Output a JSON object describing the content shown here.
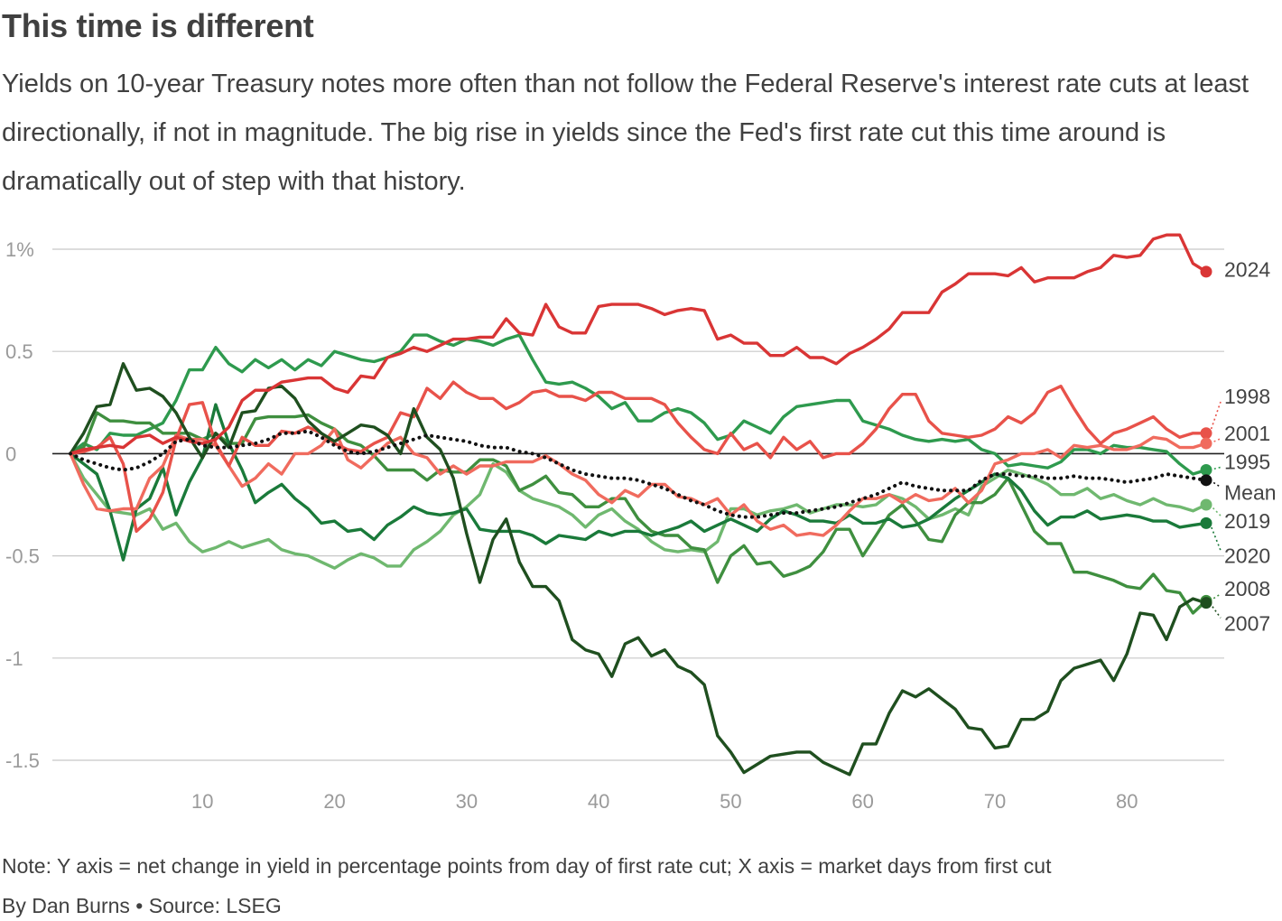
{
  "title": "This time is different",
  "subtitle": "Yields on 10-year Treasury notes more often than not follow the Federal Reserve's interest rate cuts at least directionally, if not in magnitude. The big rise in yields since the Fed's first rate cut this time around is dramatically out of step with that history.",
  "note": "Note: Y axis = net change in yield in percentage points from day of first rate cut; X axis = market days from first cut",
  "byline": "By Dan Burns • Source: LSEG",
  "chart_data": {
    "type": "line",
    "title": "This time is different",
    "xlabel": "Market days from first cut",
    "ylabel": "Net change in yield (percentage points)",
    "xlim": [
      0,
      88
    ],
    "ylim": [
      -1.65,
      1.05
    ],
    "x_ticks": [
      10,
      20,
      30,
      40,
      50,
      60,
      70,
      80
    ],
    "y_ticks": [
      {
        "value": 1,
        "label": "1%"
      },
      {
        "value": 0.5,
        "label": "0.5"
      },
      {
        "value": 0,
        "label": "0"
      },
      {
        "value": -0.5,
        "label": "-0.5"
      },
      {
        "value": -1,
        "label": "-1"
      },
      {
        "value": -1.5,
        "label": "-1.5"
      }
    ],
    "grid": true,
    "series": [
      {
        "name": "2024",
        "color": "#d93535",
        "style": "solid",
        "end_value": 0.89,
        "values": [
          0,
          0.02,
          0.03,
          0.04,
          0.03,
          0.08,
          0.09,
          0.05,
          0.08,
          0.06,
          0.05,
          0.07,
          0.13,
          0.26,
          0.31,
          0.31,
          0.35,
          0.36,
          0.37,
          0.37,
          0.32,
          0.3,
          0.38,
          0.37,
          0.47,
          0.49,
          0.52,
          0.5,
          0.53,
          0.56,
          0.56,
          0.57,
          0.57,
          0.66,
          0.59,
          0.58,
          0.73,
          0.62,
          0.59,
          0.59,
          0.72,
          0.73,
          0.73,
          0.73,
          0.71,
          0.68,
          0.7,
          0.71,
          0.7,
          0.56,
          0.58,
          0.54,
          0.54,
          0.48,
          0.48,
          0.52,
          0.47,
          0.47,
          0.44,
          0.49,
          0.52,
          0.56,
          0.61,
          0.69,
          0.69,
          0.69,
          0.79,
          0.83,
          0.88,
          0.88,
          0.88,
          0.87,
          0.91,
          0.84,
          0.86,
          0.86,
          0.86,
          0.89,
          0.91,
          0.97,
          0.96,
          0.97,
          1.05,
          1.07,
          1.07,
          0.93,
          0.89
        ]
      },
      {
        "name": "1998",
        "color": "#e8524a",
        "style": "solid",
        "end_value": 0.1,
        "values": [
          0,
          0.01,
          0.03,
          0.08,
          -0.05,
          -0.38,
          -0.32,
          -0.19,
          0.07,
          0.24,
          0.25,
          0.05,
          -0.06,
          0.08,
          0.04,
          0.04,
          0.11,
          0.1,
          0.13,
          0.1,
          0.05,
          0.02,
          0.01,
          0.05,
          0.08,
          0.2,
          0.18,
          0.32,
          0.27,
          0.35,
          0.3,
          0.27,
          0.27,
          0.22,
          0.25,
          0.3,
          0.31,
          0.28,
          0.28,
          0.26,
          0.3,
          0.3,
          0.27,
          0.27,
          0.27,
          0.24,
          0.15,
          0.08,
          0.02,
          0.0,
          0.1,
          0.02,
          0.05,
          -0.02,
          0.08,
          0.02,
          0.06,
          -0.02,
          0.0,
          0.0,
          0.05,
          0.12,
          0.22,
          0.29,
          0.29,
          0.16,
          0.1,
          0.09,
          0.08,
          0.09,
          0.12,
          0.18,
          0.15,
          0.2,
          0.3,
          0.33,
          0.22,
          0.12,
          0.05,
          0.1,
          0.12,
          0.15,
          0.18,
          0.12,
          0.08,
          0.1,
          0.1
        ]
      },
      {
        "name": "2001",
        "color": "#f06b5e",
        "style": "solid",
        "end_value": 0.05,
        "values": [
          0,
          -0.15,
          -0.27,
          -0.28,
          -0.27,
          -0.27,
          -0.12,
          -0.06,
          0.09,
          0.07,
          0.07,
          0.04,
          -0.06,
          -0.16,
          -0.12,
          -0.05,
          -0.1,
          0.0,
          0.0,
          0.04,
          0.12,
          -0.03,
          -0.07,
          -0.01,
          0.05,
          0.08,
          0.0,
          -0.02,
          -0.1,
          -0.06,
          -0.1,
          -0.06,
          -0.06,
          -0.04,
          -0.04,
          -0.04,
          -0.01,
          -0.05,
          -0.1,
          -0.13,
          -0.2,
          -0.24,
          -0.18,
          -0.21,
          -0.15,
          -0.15,
          -0.21,
          -0.22,
          -0.25,
          -0.22,
          -0.3,
          -0.25,
          -0.33,
          -0.37,
          -0.35,
          -0.4,
          -0.39,
          -0.4,
          -0.35,
          -0.28,
          -0.22,
          -0.22,
          -0.2,
          -0.24,
          -0.2,
          -0.23,
          -0.22,
          -0.17,
          -0.24,
          -0.18,
          -0.05,
          -0.03,
          0.0,
          0.0,
          0.02,
          -0.02,
          0.04,
          0.03,
          0.04,
          0.02,
          0.02,
          0.04,
          0.08,
          0.07,
          0.03,
          0.03,
          0.05
        ]
      },
      {
        "name": "1995",
        "color": "#2e9a4e",
        "style": "solid",
        "end_value": -0.08,
        "values": [
          0,
          0.05,
          0.02,
          0.1,
          0.09,
          0.09,
          0.12,
          0.15,
          0.26,
          0.41,
          0.41,
          0.52,
          0.44,
          0.4,
          0.46,
          0.42,
          0.46,
          0.41,
          0.46,
          0.43,
          0.5,
          0.48,
          0.46,
          0.45,
          0.47,
          0.5,
          0.58,
          0.58,
          0.55,
          0.53,
          0.56,
          0.55,
          0.53,
          0.56,
          0.58,
          0.46,
          0.35,
          0.34,
          0.35,
          0.32,
          0.28,
          0.22,
          0.25,
          0.16,
          0.16,
          0.2,
          0.22,
          0.2,
          0.15,
          0.07,
          0.09,
          0.16,
          0.13,
          0.1,
          0.18,
          0.23,
          0.24,
          0.25,
          0.26,
          0.26,
          0.16,
          0.14,
          0.12,
          0.09,
          0.07,
          0.06,
          0.07,
          0.06,
          0.07,
          0.02,
          0.0,
          -0.06,
          -0.05,
          -0.06,
          -0.07,
          -0.04,
          0.02,
          0.02,
          0.0,
          0.04,
          0.03,
          0.03,
          0.02,
          0.01,
          -0.05,
          -0.1,
          -0.08
        ]
      },
      {
        "name": "2019",
        "color": "#6fb86f",
        "style": "solid",
        "end_value": -0.25,
        "values": [
          0,
          -0.12,
          -0.2,
          -0.28,
          -0.29,
          -0.3,
          -0.27,
          -0.37,
          -0.34,
          -0.43,
          -0.48,
          -0.46,
          -0.43,
          -0.46,
          -0.44,
          -0.42,
          -0.47,
          -0.49,
          -0.5,
          -0.53,
          -0.56,
          -0.52,
          -0.49,
          -0.51,
          -0.55,
          -0.55,
          -0.47,
          -0.43,
          -0.38,
          -0.3,
          -0.26,
          -0.2,
          -0.05,
          -0.09,
          -0.18,
          -0.22,
          -0.24,
          -0.26,
          -0.3,
          -0.36,
          -0.3,
          -0.27,
          -0.33,
          -0.37,
          -0.43,
          -0.47,
          -0.48,
          -0.47,
          -0.48,
          -0.43,
          -0.27,
          -0.27,
          -0.3,
          -0.28,
          -0.27,
          -0.25,
          -0.29,
          -0.27,
          -0.25,
          -0.25,
          -0.26,
          -0.25,
          -0.2,
          -0.22,
          -0.26,
          -0.32,
          -0.3,
          -0.27,
          -0.3,
          -0.16,
          -0.12,
          -0.08,
          -0.1,
          -0.12,
          -0.15,
          -0.2,
          -0.2,
          -0.17,
          -0.22,
          -0.2,
          -0.23,
          -0.25,
          -0.22,
          -0.25,
          -0.26,
          -0.28,
          -0.25
        ]
      },
      {
        "name": "2020",
        "color": "#1a7a3a",
        "style": "solid",
        "end_value": -0.34,
        "values": [
          0,
          -0.05,
          -0.1,
          -0.28,
          -0.52,
          -0.27,
          -0.22,
          -0.07,
          -0.3,
          -0.14,
          -0.02,
          0.24,
          0.05,
          -0.08,
          -0.24,
          -0.19,
          -0.15,
          -0.22,
          -0.27,
          -0.34,
          -0.33,
          -0.38,
          -0.37,
          -0.42,
          -0.35,
          -0.31,
          -0.26,
          -0.29,
          -0.3,
          -0.29,
          -0.27,
          -0.37,
          -0.38,
          -0.38,
          -0.38,
          -0.4,
          -0.44,
          -0.4,
          -0.41,
          -0.42,
          -0.38,
          -0.4,
          -0.38,
          -0.38,
          -0.4,
          -0.38,
          -0.36,
          -0.33,
          -0.38,
          -0.35,
          -0.32,
          -0.35,
          -0.38,
          -0.32,
          -0.28,
          -0.3,
          -0.33,
          -0.33,
          -0.34,
          -0.3,
          -0.34,
          -0.34,
          -0.32,
          -0.36,
          -0.35,
          -0.32,
          -0.27,
          -0.22,
          -0.18,
          -0.14,
          -0.1,
          -0.12,
          -0.18,
          -0.28,
          -0.35,
          -0.31,
          -0.31,
          -0.28,
          -0.32,
          -0.31,
          -0.3,
          -0.31,
          -0.33,
          -0.33,
          -0.36,
          -0.35,
          -0.34
        ]
      },
      {
        "name": "2008",
        "color": "#3f8f3f",
        "style": "solid",
        "end_value": -0.72,
        "values": [
          0,
          0.03,
          0.2,
          0.16,
          0.16,
          0.15,
          0.15,
          0.1,
          0.1,
          0.1,
          0.07,
          0.1,
          0.05,
          0.05,
          0.17,
          0.18,
          0.18,
          0.18,
          0.19,
          0.15,
          0.12,
          0.06,
          0.04,
          -0.01,
          -0.08,
          -0.08,
          -0.08,
          -0.13,
          -0.08,
          -0.09,
          -0.09,
          -0.03,
          -0.03,
          -0.06,
          -0.18,
          -0.15,
          -0.11,
          -0.19,
          -0.2,
          -0.26,
          -0.26,
          -0.22,
          -0.22,
          -0.32,
          -0.38,
          -0.4,
          -0.4,
          -0.46,
          -0.47,
          -0.63,
          -0.5,
          -0.45,
          -0.54,
          -0.53,
          -0.6,
          -0.58,
          -0.55,
          -0.48,
          -0.37,
          -0.37,
          -0.5,
          -0.4,
          -0.3,
          -0.25,
          -0.33,
          -0.42,
          -0.43,
          -0.3,
          -0.24,
          -0.24,
          -0.2,
          -0.12,
          -0.25,
          -0.38,
          -0.44,
          -0.44,
          -0.58,
          -0.58,
          -0.6,
          -0.62,
          -0.65,
          -0.66,
          -0.59,
          -0.67,
          -0.68,
          -0.78,
          -0.72
        ]
      },
      {
        "name": "2007",
        "color": "#1f4f1f",
        "style": "solid",
        "end_value": -0.73,
        "values": [
          0,
          0.1,
          0.23,
          0.24,
          0.44,
          0.31,
          0.32,
          0.28,
          0.2,
          0.08,
          -0.02,
          0.1,
          0.03,
          0.2,
          0.21,
          0.32,
          0.33,
          0.27,
          0.16,
          0.1,
          0.06,
          0.1,
          0.14,
          0.13,
          0.09,
          0.0,
          0.22,
          0.08,
          0.02,
          -0.12,
          -0.39,
          -0.63,
          -0.42,
          -0.32,
          -0.53,
          -0.65,
          -0.65,
          -0.72,
          -0.91,
          -0.96,
          -0.98,
          -1.09,
          -0.93,
          -0.9,
          -0.99,
          -0.96,
          -1.04,
          -1.07,
          -1.13,
          -1.38,
          -1.46,
          -1.56,
          -1.52,
          -1.48,
          -1.47,
          -1.46,
          -1.46,
          -1.51,
          -1.54,
          -1.57,
          -1.42,
          -1.42,
          -1.27,
          -1.16,
          -1.19,
          -1.15,
          -1.2,
          -1.25,
          -1.34,
          -1.35,
          -1.44,
          -1.43,
          -1.3,
          -1.3,
          -1.26,
          -1.11,
          -1.05,
          -1.03,
          -1.01,
          -1.11,
          -0.98,
          -0.78,
          -0.79,
          -0.91,
          -0.75,
          -0.71,
          -0.73
        ]
      },
      {
        "name": "Mean",
        "color": "#111111",
        "style": "dotted",
        "end_value": -0.13,
        "values": [
          0,
          -0.03,
          -0.05,
          -0.07,
          -0.08,
          -0.07,
          -0.04,
          0.0,
          0.06,
          0.07,
          0.04,
          0.03,
          0.03,
          0.04,
          0.05,
          0.07,
          0.1,
          0.1,
          0.11,
          0.08,
          0.04,
          0.01,
          0.0,
          0.01,
          0.03,
          0.05,
          0.07,
          0.09,
          0.08,
          0.07,
          0.06,
          0.04,
          0.03,
          0.03,
          0.01,
          0.0,
          -0.02,
          -0.05,
          -0.08,
          -0.1,
          -0.11,
          -0.12,
          -0.12,
          -0.13,
          -0.15,
          -0.17,
          -0.2,
          -0.23,
          -0.25,
          -0.28,
          -0.3,
          -0.31,
          -0.31,
          -0.3,
          -0.29,
          -0.29,
          -0.28,
          -0.27,
          -0.26,
          -0.24,
          -0.22,
          -0.2,
          -0.17,
          -0.14,
          -0.16,
          -0.17,
          -0.18,
          -0.18,
          -0.18,
          -0.13,
          -0.1,
          -0.1,
          -0.11,
          -0.11,
          -0.12,
          -0.12,
          -0.11,
          -0.12,
          -0.12,
          -0.13,
          -0.14,
          -0.13,
          -0.12,
          -0.1,
          -0.11,
          -0.12,
          -0.13
        ]
      }
    ],
    "end_labels": [
      {
        "series": "2024",
        "label": "2024",
        "value": 0.9
      },
      {
        "series": "1998",
        "label": "1998",
        "value": 0.28
      },
      {
        "series": "2001",
        "label": "2001",
        "value": 0.1
      },
      {
        "series": "1995",
        "label": "1995",
        "value": -0.04
      },
      {
        "series": "Mean",
        "label": "Mean",
        "value": -0.19
      },
      {
        "series": "2019",
        "label": "2019",
        "value": -0.33
      },
      {
        "series": "2020",
        "label": "2020",
        "value": -0.5
      },
      {
        "series": "2008",
        "label": "2008",
        "value": -0.66
      },
      {
        "series": "2007",
        "label": "2007",
        "value": -0.83
      }
    ]
  }
}
